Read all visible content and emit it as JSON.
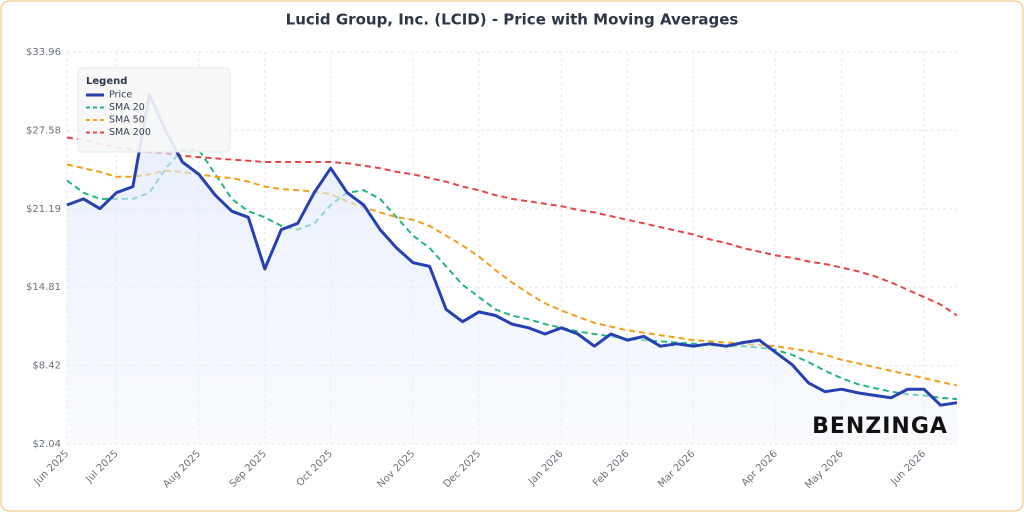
{
  "chart_data": {
    "type": "line",
    "title": "Lucid Group, Inc. (LCID) - Price with Moving Averages",
    "legend_title": "Legend",
    "legend": "top-left",
    "grid": true,
    "watermark": "BENZINGA",
    "ylim": [
      2.04,
      33.96
    ],
    "yticks": [
      {
        "value": 2.04,
        "label": "$2.04"
      },
      {
        "value": 8.42,
        "label": "$8.42"
      },
      {
        "value": 14.81,
        "label": "$14.81"
      },
      {
        "value": 21.19,
        "label": "$21.19"
      },
      {
        "value": 27.58,
        "label": "$27.58"
      },
      {
        "value": 33.96,
        "label": "$33.96"
      }
    ],
    "categories": [
      "Jun 2025",
      null,
      null,
      "Jul 2025",
      null,
      null,
      null,
      null,
      "Aug 2025",
      null,
      null,
      null,
      "Sep 2025",
      null,
      null,
      null,
      "Oct 2025",
      null,
      null,
      null,
      null,
      "Nov 2025",
      null,
      null,
      null,
      "Dec 2025",
      null,
      null,
      null,
      null,
      "Jan 2026",
      null,
      null,
      null,
      "Feb 2026",
      null,
      null,
      null,
      "Mar 2026",
      null,
      null,
      null,
      null,
      "Apr 2026",
      null,
      null,
      null,
      "May 2026",
      null,
      null,
      null,
      null,
      "Jun 2026",
      null,
      null
    ],
    "series": [
      {
        "name": "Price",
        "color": "#2541b2",
        "style": "solid",
        "fill": true,
        "values": [
          21.5,
          22.0,
          21.2,
          22.5,
          23.0,
          30.5,
          27.5,
          25.0,
          24.0,
          22.3,
          21.0,
          20.5,
          16.3,
          19.5,
          20.0,
          22.5,
          24.5,
          22.5,
          21.5,
          19.5,
          18.0,
          16.8,
          16.5,
          13.0,
          12.0,
          12.8,
          12.5,
          11.8,
          11.5,
          11.0,
          11.5,
          11.0,
          10.0,
          11.0,
          10.5,
          10.8,
          10.0,
          10.2,
          10.0,
          10.2,
          10.0,
          10.3,
          10.5,
          9.5,
          8.5,
          7.0,
          6.3,
          6.5,
          6.2,
          6.0,
          5.8,
          6.5,
          6.5,
          5.2,
          5.4
        ]
      },
      {
        "name": "SMA 20",
        "color": "#22b77e",
        "style": "dashed",
        "values": [
          23.5,
          22.5,
          22.0,
          22.0,
          22.0,
          22.5,
          24.5,
          26.0,
          26.0,
          24.0,
          22.0,
          21.0,
          20.5,
          19.8,
          19.5,
          20.0,
          21.5,
          22.5,
          22.7,
          22.0,
          20.5,
          19.0,
          18.0,
          16.5,
          15.0,
          14.0,
          13.0,
          12.5,
          12.2,
          11.8,
          11.5,
          11.2,
          11.0,
          10.8,
          10.6,
          10.5,
          10.4,
          10.3,
          10.2,
          10.1,
          10.0,
          10.0,
          9.9,
          9.7,
          9.3,
          8.7,
          8.0,
          7.4,
          6.9,
          6.6,
          6.3,
          6.1,
          6.0,
          5.8,
          5.7
        ]
      },
      {
        "name": "SMA 50",
        "color": "#f0a01a",
        "style": "dashed",
        "values": [
          24.8,
          24.5,
          24.2,
          23.8,
          23.8,
          24.0,
          24.3,
          24.2,
          24.0,
          23.8,
          23.7,
          23.4,
          23.0,
          22.8,
          22.7,
          22.6,
          22.4,
          21.8,
          21.3,
          20.9,
          20.5,
          20.3,
          19.8,
          19.0,
          18.2,
          17.3,
          16.2,
          15.2,
          14.3,
          13.5,
          12.9,
          12.4,
          11.9,
          11.6,
          11.3,
          11.1,
          10.9,
          10.7,
          10.5,
          10.4,
          10.3,
          10.2,
          10.1,
          10.0,
          9.8,
          9.6,
          9.3,
          8.9,
          8.6,
          8.3,
          8.0,
          7.7,
          7.4,
          7.1,
          6.8
        ]
      },
      {
        "name": "SMA 200",
        "color": "#e84545",
        "style": "dashed",
        "values": [
          27.0,
          26.8,
          26.5,
          26.2,
          26.0,
          25.8,
          25.7,
          25.5,
          25.4,
          25.3,
          25.2,
          25.1,
          25.0,
          25.0,
          25.0,
          25.0,
          25.0,
          24.9,
          24.7,
          24.5,
          24.2,
          24.0,
          23.7,
          23.4,
          23.0,
          22.7,
          22.3,
          22.0,
          21.8,
          21.6,
          21.4,
          21.1,
          20.9,
          20.6,
          20.3,
          20.0,
          19.7,
          19.4,
          19.1,
          18.7,
          18.4,
          18.0,
          17.7,
          17.4,
          17.2,
          16.9,
          16.7,
          16.4,
          16.1,
          15.7,
          15.2,
          14.6,
          14.0,
          13.4,
          12.5
        ]
      }
    ]
  }
}
